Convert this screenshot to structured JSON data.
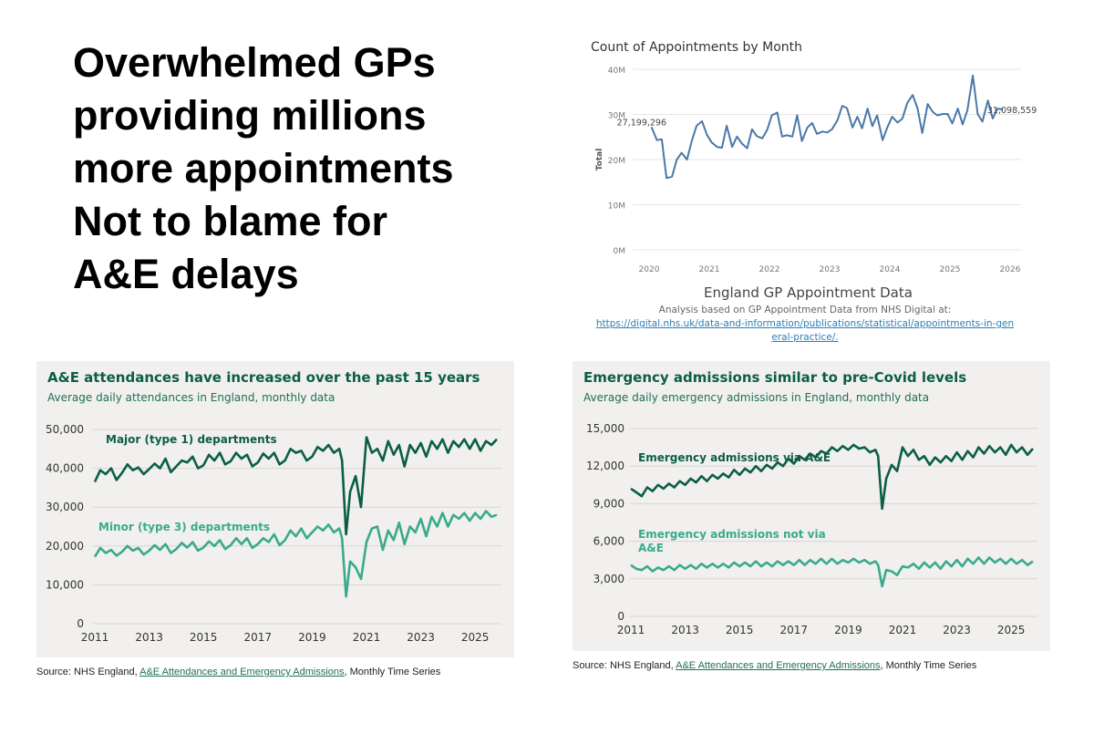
{
  "headline": {
    "lines": [
      "Overwhelmed GPs",
      "providing millions",
      "more appointments",
      "Not to blame for",
      "A&E delays"
    ]
  },
  "gp_chart": {
    "caption_title": "England GP Appointment Data",
    "caption_note": "Analysis based on GP Appointment Data from NHS Digital at:",
    "caption_link": "https://digital.nhs.uk/data-and-information/publications/statistical/appointments-in-general-practice/.",
    "caption_link_line1": "https://digital.nhs.uk/data-and-information/publications/statistical/appointments-in-gen",
    "caption_link_line2": "eral-practice/."
  },
  "ae_chart": {
    "source_prefix": "Source: NHS England, ",
    "source_link": "A&E Attendances and Emergency Admissions",
    "source_suffix": ", Monthly Time Series"
  },
  "em_chart": {
    "source_prefix": "Source: NHS England, ",
    "source_link": "A&E Attendances and Emergency Admissions",
    "source_suffix": ", Monthly Time Series"
  },
  "chart_data": [
    {
      "type": "line",
      "title": "Count of Appointments by Month",
      "xlabel": "",
      "ylabel": "Total",
      "ylim": [
        0,
        40000000
      ],
      "xlim": [
        2020,
        2026
      ],
      "y_ticks": [
        0,
        10000000,
        20000000,
        30000000,
        40000000
      ],
      "y_tick_labels": [
        "0M",
        "10M",
        "20M",
        "30M",
        "40M"
      ],
      "x_ticks": [
        2020,
        2021,
        2022,
        2023,
        2024,
        2025,
        2026
      ],
      "x_tick_labels": [
        "2020",
        "2021",
        "2022",
        "2023",
        "2024",
        "2025",
        "2026"
      ],
      "grid": true,
      "color": "#4a78a8",
      "annotations": [
        {
          "text": "27,199,296",
          "x": 2020.04,
          "y": 27199296
        },
        {
          "text": "31,098,559",
          "x": 2025.88,
          "y": 31098559
        }
      ],
      "series": [
        {
          "x": [
            2020.04,
            2020.13,
            2020.21,
            2020.29,
            2020.38,
            2020.46,
            2020.54,
            2020.63,
            2020.71,
            2020.79,
            2020.88,
            2020.96,
            2021.04,
            2021.13,
            2021.21,
            2021.29,
            2021.38,
            2021.46,
            2021.54,
            2021.63,
            2021.71,
            2021.79,
            2021.88,
            2021.96,
            2022.04,
            2022.13,
            2022.21,
            2022.29,
            2022.38,
            2022.46,
            2022.54,
            2022.63,
            2022.71,
            2022.79,
            2022.88,
            2022.96,
            2023.04,
            2023.13,
            2023.21,
            2023.29,
            2023.38,
            2023.46,
            2023.54,
            2023.63,
            2023.71,
            2023.79,
            2023.88,
            2023.96,
            2024.04,
            2024.13,
            2024.21,
            2024.29,
            2024.38,
            2024.46,
            2024.54,
            2024.63,
            2024.71,
            2024.79,
            2024.88,
            2024.96,
            2025.04,
            2025.13,
            2025.21,
            2025.29,
            2025.38,
            2025.46,
            2025.54,
            2025.63,
            2025.71,
            2025.79,
            2025.88
          ],
          "y": [
            27199296,
            24300000,
            24500000,
            15900000,
            16200000,
            20000000,
            21500000,
            20000000,
            24200000,
            27500000,
            28500000,
            25500000,
            23800000,
            22800000,
            22600000,
            27500000,
            22800000,
            25100000,
            23600000,
            22500000,
            26700000,
            25200000,
            24700000,
            26500000,
            29800000,
            30400000,
            25100000,
            25400000,
            25100000,
            29800000,
            24100000,
            27100000,
            28100000,
            25700000,
            26200000,
            26000000,
            26700000,
            28700000,
            31900000,
            31400000,
            27100000,
            29500000,
            26900000,
            31300000,
            27400000,
            29800000,
            24300000,
            27200000,
            29500000,
            28200000,
            29100000,
            32500000,
            34300000,
            31400000,
            25900000,
            32300000,
            30600000,
            29800000,
            30100000,
            30100000,
            28000000,
            31300000,
            27800000,
            30900000,
            38600000,
            30100000,
            28400000,
            33100000,
            29100000,
            31300000,
            31098559
          ]
        }
      ]
    },
    {
      "type": "line",
      "title": "A&E attendances have increased over the past 15 years",
      "subtitle": "Average daily attendances in England, monthly data",
      "xlabel": "",
      "ylabel": "",
      "ylim": [
        0,
        50000
      ],
      "xlim": [
        2011,
        2025.9
      ],
      "y_ticks": [
        0,
        10000,
        20000,
        30000,
        40000,
        50000
      ],
      "y_tick_labels": [
        "0",
        "10,000",
        "20,000",
        "30,000",
        "40,000",
        "50,000"
      ],
      "x_ticks": [
        2011,
        2013,
        2015,
        2017,
        2019,
        2021,
        2023,
        2025
      ],
      "x_tick_labels": [
        "2011",
        "2013",
        "2015",
        "2017",
        "2019",
        "2021",
        "2023",
        "2025"
      ],
      "grid": true,
      "series": [
        {
          "name": "Major (type 1) departments",
          "color": "#0b5e45",
          "x": [
            2011.0,
            2011.2,
            2011.4,
            2011.6,
            2011.8,
            2012.0,
            2012.2,
            2012.4,
            2012.6,
            2012.8,
            2013.0,
            2013.2,
            2013.4,
            2013.6,
            2013.8,
            2014.0,
            2014.2,
            2014.4,
            2014.6,
            2014.8,
            2015.0,
            2015.2,
            2015.4,
            2015.6,
            2015.8,
            2016.0,
            2016.2,
            2016.4,
            2016.6,
            2016.8,
            2017.0,
            2017.2,
            2017.4,
            2017.6,
            2017.8,
            2018.0,
            2018.2,
            2018.4,
            2018.6,
            2018.8,
            2019.0,
            2019.2,
            2019.4,
            2019.6,
            2019.8,
            2020.0,
            2020.1,
            2020.25,
            2020.4,
            2020.6,
            2020.8,
            2021.0,
            2021.2,
            2021.4,
            2021.6,
            2021.8,
            2022.0,
            2022.2,
            2022.4,
            2022.6,
            2022.8,
            2023.0,
            2023.2,
            2023.4,
            2023.6,
            2023.8,
            2024.0,
            2024.2,
            2024.4,
            2024.6,
            2024.8,
            2025.0,
            2025.2,
            2025.4,
            2025.6,
            2025.8
          ],
          "y": [
            36500,
            39500,
            38500,
            40000,
            37000,
            38800,
            41000,
            39500,
            40200,
            38500,
            39800,
            41200,
            40000,
            42500,
            39000,
            40500,
            42000,
            41500,
            43000,
            40000,
            40800,
            43500,
            42000,
            44000,
            41000,
            41800,
            44000,
            42500,
            43500,
            40500,
            41500,
            43800,
            42500,
            44000,
            41000,
            42000,
            45000,
            44000,
            44500,
            42000,
            43000,
            45500,
            44500,
            46000,
            44000,
            45000,
            42000,
            23000,
            34000,
            38000,
            30000,
            48000,
            44000,
            45000,
            42000,
            47000,
            43500,
            46000,
            40500,
            46000,
            44000,
            46500,
            43000,
            47000,
            45000,
            47500,
            44000,
            47000,
            45500,
            47500,
            45000,
            47500,
            44500,
            47000,
            46000,
            47500
          ]
        },
        {
          "name": "Minor (type 3) departments",
          "color": "#3aaa8c",
          "x": [
            2011.0,
            2011.2,
            2011.4,
            2011.6,
            2011.8,
            2012.0,
            2012.2,
            2012.4,
            2012.6,
            2012.8,
            2013.0,
            2013.2,
            2013.4,
            2013.6,
            2013.8,
            2014.0,
            2014.2,
            2014.4,
            2014.6,
            2014.8,
            2015.0,
            2015.2,
            2015.4,
            2015.6,
            2015.8,
            2016.0,
            2016.2,
            2016.4,
            2016.6,
            2016.8,
            2017.0,
            2017.2,
            2017.4,
            2017.6,
            2017.8,
            2018.0,
            2018.2,
            2018.4,
            2018.6,
            2018.8,
            2019.0,
            2019.2,
            2019.4,
            2019.6,
            2019.8,
            2020.0,
            2020.1,
            2020.25,
            2020.4,
            2020.6,
            2020.8,
            2021.0,
            2021.2,
            2021.4,
            2021.6,
            2021.8,
            2022.0,
            2022.2,
            2022.4,
            2022.6,
            2022.8,
            2023.0,
            2023.2,
            2023.4,
            2023.6,
            2023.8,
            2024.0,
            2024.2,
            2024.4,
            2024.6,
            2024.8,
            2025.0,
            2025.2,
            2025.4,
            2025.6,
            2025.8
          ],
          "y": [
            17200,
            19500,
            18200,
            19000,
            17500,
            18500,
            20000,
            18800,
            19500,
            17800,
            18800,
            20200,
            19000,
            20500,
            18200,
            19200,
            20800,
            19600,
            21000,
            18800,
            19600,
            21200,
            20000,
            21500,
            19200,
            20200,
            22000,
            20500,
            22000,
            19500,
            20500,
            22000,
            21000,
            23000,
            20200,
            21500,
            24000,
            22500,
            24500,
            22000,
            23500,
            25000,
            24000,
            25500,
            23500,
            24500,
            22000,
            7000,
            16000,
            14500,
            11500,
            21000,
            24500,
            25000,
            19000,
            24000,
            21500,
            26000,
            20500,
            25000,
            23500,
            27000,
            22500,
            27500,
            25000,
            28500,
            25000,
            28000,
            27000,
            28500,
            26500,
            28500,
            27000,
            29000,
            27500,
            28000
          ]
        }
      ]
    },
    {
      "type": "line",
      "title": "Emergency admissions similar to pre-Covid levels",
      "subtitle": "Average daily emergency admissions in England, monthly data",
      "xlabel": "",
      "ylabel": "",
      "ylim": [
        0,
        15000
      ],
      "xlim": [
        2011,
        2025.9
      ],
      "y_ticks": [
        0,
        3000,
        6000,
        9000,
        12000,
        15000
      ],
      "y_tick_labels": [
        "0",
        "3,000",
        "6,000",
        "9,000",
        "12,000",
        "15,000"
      ],
      "x_ticks": [
        2011,
        2013,
        2015,
        2017,
        2019,
        2021,
        2023,
        2025
      ],
      "x_tick_labels": [
        "2011",
        "2013",
        "2015",
        "2017",
        "2019",
        "2021",
        "2023",
        "2025"
      ],
      "grid": true,
      "series": [
        {
          "name": "Emergency admissions via A&E",
          "color": "#0b5e45",
          "x": [
            2011.0,
            2011.2,
            2011.4,
            2011.6,
            2011.8,
            2012.0,
            2012.2,
            2012.4,
            2012.6,
            2012.8,
            2013.0,
            2013.2,
            2013.4,
            2013.6,
            2013.8,
            2014.0,
            2014.2,
            2014.4,
            2014.6,
            2014.8,
            2015.0,
            2015.2,
            2015.4,
            2015.6,
            2015.8,
            2016.0,
            2016.2,
            2016.4,
            2016.6,
            2016.8,
            2017.0,
            2017.2,
            2017.4,
            2017.6,
            2017.8,
            2018.0,
            2018.2,
            2018.4,
            2018.6,
            2018.8,
            2019.0,
            2019.2,
            2019.4,
            2019.6,
            2019.8,
            2020.0,
            2020.1,
            2020.25,
            2020.4,
            2020.6,
            2020.8,
            2021.0,
            2021.2,
            2021.4,
            2021.6,
            2021.8,
            2022.0,
            2022.2,
            2022.4,
            2022.6,
            2022.8,
            2023.0,
            2023.2,
            2023.4,
            2023.6,
            2023.8,
            2024.0,
            2024.2,
            2024.4,
            2024.6,
            2024.8,
            2025.0,
            2025.2,
            2025.4,
            2025.6,
            2025.8
          ],
          "y": [
            10200,
            9900,
            9600,
            10300,
            10000,
            10500,
            10200,
            10600,
            10300,
            10800,
            10500,
            11000,
            10700,
            11200,
            10800,
            11300,
            11000,
            11400,
            11100,
            11700,
            11300,
            11800,
            11500,
            12000,
            11600,
            12100,
            11800,
            12300,
            12000,
            12600,
            12200,
            12800,
            12500,
            13000,
            12700,
            13200,
            13000,
            13500,
            13200,
            13600,
            13300,
            13700,
            13400,
            13500,
            13100,
            13300,
            12800,
            8600,
            11000,
            12100,
            11600,
            13500,
            12800,
            13300,
            12500,
            12800,
            12100,
            12700,
            12300,
            12800,
            12400,
            13100,
            12500,
            13200,
            12700,
            13500,
            13000,
            13600,
            13100,
            13500,
            12900,
            13700,
            13100,
            13500,
            12900,
            13400
          ]
        },
        {
          "name": "Emergency admissions not via A&E",
          "color": "#3aaa8c",
          "x": [
            2011.0,
            2011.2,
            2011.4,
            2011.6,
            2011.8,
            2012.0,
            2012.2,
            2012.4,
            2012.6,
            2012.8,
            2013.0,
            2013.2,
            2013.4,
            2013.6,
            2013.8,
            2014.0,
            2014.2,
            2014.4,
            2014.6,
            2014.8,
            2015.0,
            2015.2,
            2015.4,
            2015.6,
            2015.8,
            2016.0,
            2016.2,
            2016.4,
            2016.6,
            2016.8,
            2017.0,
            2017.2,
            2017.4,
            2017.6,
            2017.8,
            2018.0,
            2018.2,
            2018.4,
            2018.6,
            2018.8,
            2019.0,
            2019.2,
            2019.4,
            2019.6,
            2019.8,
            2020.0,
            2020.1,
            2020.25,
            2020.4,
            2020.6,
            2020.8,
            2021.0,
            2021.2,
            2021.4,
            2021.6,
            2021.8,
            2022.0,
            2022.2,
            2022.4,
            2022.6,
            2022.8,
            2023.0,
            2023.2,
            2023.4,
            2023.6,
            2023.8,
            2024.0,
            2024.2,
            2024.4,
            2024.6,
            2024.8,
            2025.0,
            2025.2,
            2025.4,
            2025.6,
            2025.8
          ],
          "y": [
            4100,
            3800,
            3700,
            4000,
            3600,
            3900,
            3700,
            4000,
            3700,
            4100,
            3800,
            4100,
            3800,
            4200,
            3900,
            4200,
            3900,
            4200,
            3900,
            4300,
            4000,
            4300,
            4000,
            4400,
            4000,
            4300,
            4000,
            4400,
            4100,
            4400,
            4100,
            4500,
            4100,
            4500,
            4200,
            4600,
            4200,
            4600,
            4200,
            4500,
            4300,
            4600,
            4300,
            4500,
            4200,
            4400,
            4100,
            2400,
            3700,
            3600,
            3300,
            4000,
            3900,
            4200,
            3800,
            4300,
            3900,
            4300,
            3800,
            4400,
            4000,
            4500,
            4000,
            4600,
            4200,
            4700,
            4200,
            4700,
            4300,
            4600,
            4200,
            4600,
            4200,
            4500,
            4100,
            4400
          ]
        }
      ]
    }
  ]
}
